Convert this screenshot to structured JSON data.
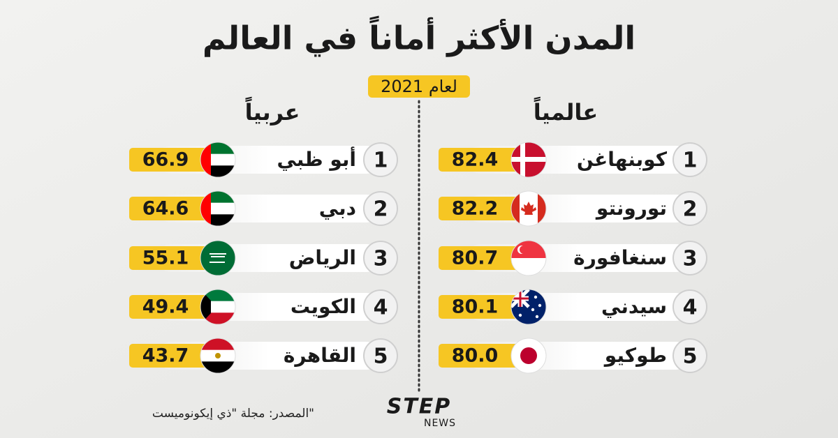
{
  "title": "المدن الأكثر أماناً في العالم",
  "year": "لعام 2021",
  "sections": [
    {
      "heading": "عالمياً",
      "rows": [
        {
          "rank": 1,
          "city": "كوبنهاغن",
          "score": "82.4"
        },
        {
          "rank": 2,
          "city": "تورونتو",
          "score": "82.2"
        },
        {
          "rank": 3,
          "city": "سنغافورة",
          "score": "80.7"
        },
        {
          "rank": 4,
          "city": "سيدني",
          "score": "80.1"
        },
        {
          "rank": 5,
          "city": "طوكيو",
          "score": "80.0"
        }
      ]
    },
    {
      "heading": "عربياً",
      "rows": [
        {
          "rank": 1,
          "city": "أبو ظبي",
          "score": "66.9"
        },
        {
          "rank": 2,
          "city": "دبي",
          "score": "64.6"
        },
        {
          "rank": 3,
          "city": "الرياض",
          "score": "55.1"
        },
        {
          "rank": 4,
          "city": "الكويت",
          "score": "49.4"
        },
        {
          "rank": 5,
          "city": "القاهرة",
          "score": "43.7"
        }
      ]
    }
  ],
  "source": "المصدر: مجلة \"ذي إيكونوميست\"",
  "logo": {
    "name": "STEP",
    "sub": "NEWS"
  }
}
